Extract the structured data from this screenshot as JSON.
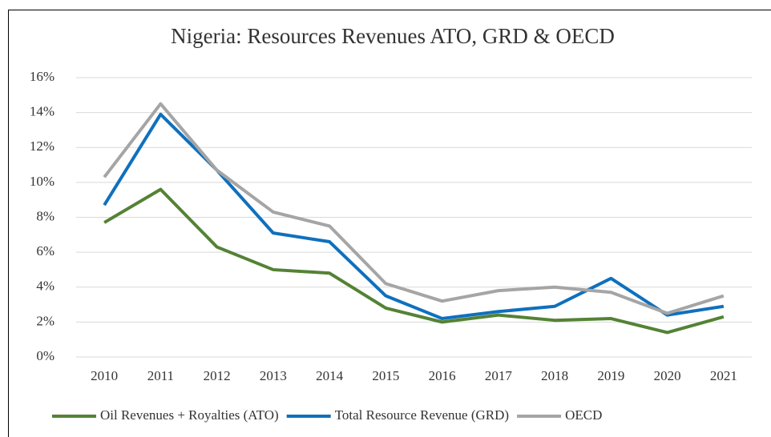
{
  "chart_data": {
    "type": "line",
    "title": "Nigeria: Resources Revenues ATO, GRD & OECD",
    "categories": [
      "2010",
      "2011",
      "2012",
      "2013",
      "2014",
      "2015",
      "2016",
      "2017",
      "2018",
      "2019",
      "2020",
      "2021"
    ],
    "series": [
      {
        "name": "Oil Revenues + Royalties (ATO)",
        "color": "#548235",
        "values": [
          7.7,
          9.6,
          6.3,
          5.0,
          4.8,
          2.8,
          2.0,
          2.4,
          2.1,
          2.2,
          1.4,
          2.3
        ]
      },
      {
        "name": "Total Resource Revenue (GRD)",
        "color": "#0f70bd",
        "values": [
          8.7,
          13.9,
          10.7,
          7.1,
          6.6,
          3.5,
          2.2,
          2.6,
          2.9,
          4.5,
          2.4,
          2.9
        ]
      },
      {
        "name": "OECD",
        "color": "#a5a5a5",
        "values": [
          10.3,
          14.5,
          10.7,
          8.3,
          7.5,
          4.2,
          3.2,
          3.8,
          4.0,
          3.7,
          2.5,
          3.5
        ]
      }
    ],
    "ylim": [
      0,
      16
    ],
    "yticks": [
      {
        "value": 0,
        "label": "0%"
      },
      {
        "value": 2,
        "label": "2%"
      },
      {
        "value": 4,
        "label": "4%"
      },
      {
        "value": 6,
        "label": "6%"
      },
      {
        "value": 8,
        "label": "8%"
      },
      {
        "value": 10,
        "label": "10%"
      },
      {
        "value": 12,
        "label": "12%"
      },
      {
        "value": 14,
        "label": "14%"
      },
      {
        "value": 16,
        "label": "16%"
      }
    ],
    "grid": true,
    "legend": "bottom"
  }
}
